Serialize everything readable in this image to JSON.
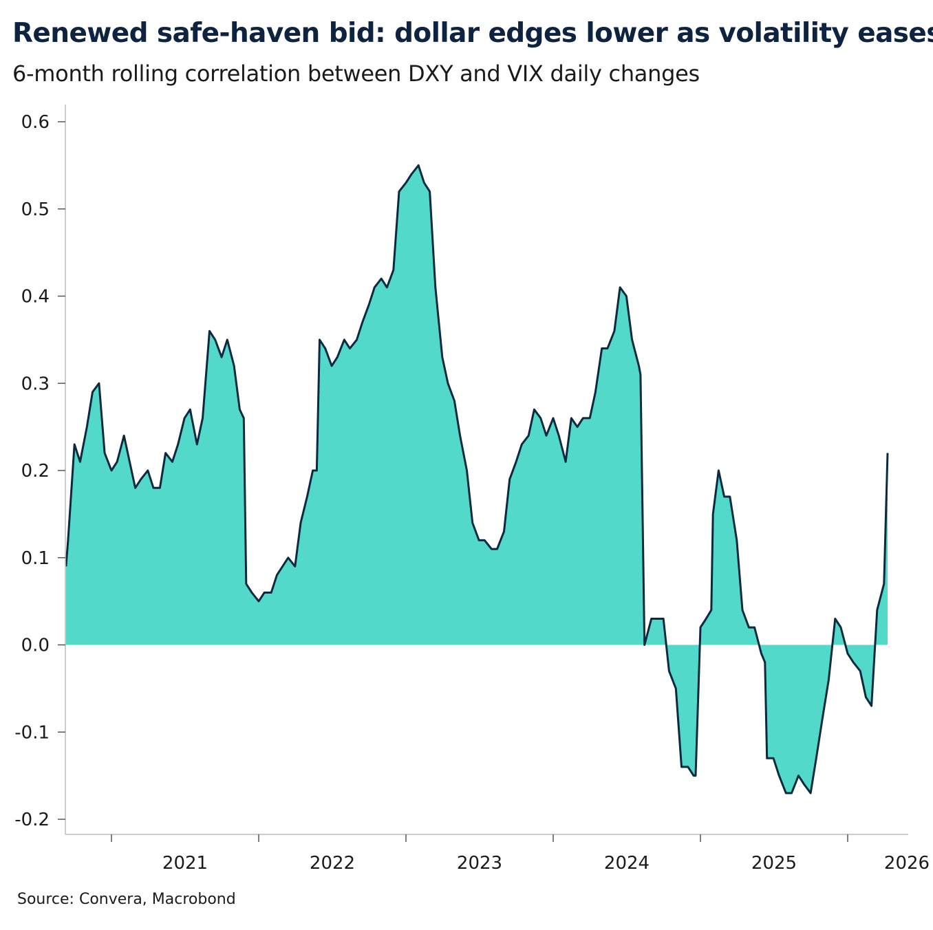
{
  "title": "Renewed safe-haven bid: dollar edges lower as volatility eases",
  "subtitle": "6-month rolling correlation between DXY and VIX daily changes",
  "source": "Source: Convera, Macrobond",
  "colors": {
    "fill": "#52d9c9",
    "line": "#0b2a40",
    "axis": "#bbbbbb"
  },
  "chart_data": {
    "type": "area",
    "title": "Renewed safe-haven bid: dollar edges lower as volatility eases",
    "subtitle": "6-month rolling correlation between DXY and VIX daily changes",
    "xlabel": "",
    "ylabel": "",
    "ylim": [
      -0.2,
      0.6
    ],
    "yticks": [
      "-0.2",
      "-0.1",
      "0.0",
      "0.1",
      "0.2",
      "0.3",
      "0.4",
      "0.5",
      "0.6"
    ],
    "xticks": [
      "2021",
      "2022",
      "2023",
      "2024",
      "2025",
      "2026"
    ],
    "grid": false,
    "x": [
      "2020-09-10",
      "2020-09-15",
      "2020-10-01",
      "2020-10-15",
      "2020-11-01",
      "2020-11-15",
      "2020-12-01",
      "2020-12-15",
      "2021-01-01",
      "2021-01-15",
      "2021-02-01",
      "2021-02-15",
      "2021-03-01",
      "2021-03-15",
      "2021-04-01",
      "2021-04-15",
      "2021-05-01",
      "2021-05-15",
      "2021-06-01",
      "2021-06-15",
      "2021-07-01",
      "2021-07-15",
      "2021-08-01",
      "2021-08-15",
      "2021-09-01",
      "2021-09-15",
      "2021-10-01",
      "2021-10-15",
      "2021-11-01",
      "2021-11-15",
      "2021-11-25",
      "2021-12-01",
      "2021-12-15",
      "2022-01-01",
      "2022-01-15",
      "2022-02-01",
      "2022-02-15",
      "2022-03-01",
      "2022-03-15",
      "2022-04-01",
      "2022-04-15",
      "2022-05-01",
      "2022-05-15",
      "2022-05-25",
      "2022-06-01",
      "2022-06-15",
      "2022-07-01",
      "2022-07-15",
      "2022-08-01",
      "2022-08-15",
      "2022-09-01",
      "2022-09-15",
      "2022-10-01",
      "2022-10-15",
      "2022-11-01",
      "2022-11-15",
      "2022-12-01",
      "2022-12-15",
      "2023-01-01",
      "2023-01-15",
      "2023-02-01",
      "2023-02-15",
      "2023-03-01",
      "2023-03-15",
      "2023-04-01",
      "2023-04-15",
      "2023-05-01",
      "2023-05-15",
      "2023-06-01",
      "2023-06-15",
      "2023-07-01",
      "2023-07-15",
      "2023-08-01",
      "2023-08-15",
      "2023-09-01",
      "2023-09-15",
      "2023-10-01",
      "2023-10-15",
      "2023-11-01",
      "2023-11-15",
      "2023-12-01",
      "2023-12-15",
      "2024-01-01",
      "2024-01-15",
      "2024-02-01",
      "2024-02-15",
      "2024-03-01",
      "2024-03-15",
      "2024-04-01",
      "2024-04-15",
      "2024-05-01",
      "2024-05-15",
      "2024-06-01",
      "2024-06-15",
      "2024-07-01",
      "2024-07-15",
      "2024-08-01",
      "2024-08-05",
      "2024-08-15",
      "2024-09-01",
      "2024-09-15",
      "2024-10-01",
      "2024-10-15",
      "2024-11-01",
      "2024-11-15",
      "2024-12-01",
      "2024-12-15",
      "2024-12-20",
      "2025-01-01",
      "2025-01-15",
      "2025-01-28",
      "2025-02-01",
      "2025-02-15",
      "2025-03-01",
      "2025-03-15",
      "2025-04-01",
      "2025-04-15",
      "2025-05-01",
      "2025-05-15",
      "2025-06-01",
      "2025-06-10",
      "2025-06-15",
      "2025-07-01",
      "2025-07-15",
      "2025-08-01",
      "2025-08-15",
      "2025-09-01",
      "2025-09-15",
      "2025-10-01",
      "2025-10-15",
      "2025-11-01",
      "2025-11-15",
      "2025-12-01",
      "2025-12-15",
      "2026-01-01",
      "2026-01-15",
      "2026-02-01",
      "2026-02-15",
      "2026-03-01",
      "2026-03-15",
      "2026-04-01",
      "2026-04-10"
    ],
    "values": [
      0.09,
      0.12,
      0.23,
      0.21,
      0.25,
      0.29,
      0.3,
      0.22,
      0.2,
      0.21,
      0.24,
      0.21,
      0.18,
      0.19,
      0.2,
      0.18,
      0.18,
      0.22,
      0.21,
      0.23,
      0.26,
      0.27,
      0.23,
      0.26,
      0.36,
      0.35,
      0.33,
      0.35,
      0.32,
      0.27,
      0.26,
      0.07,
      0.06,
      0.05,
      0.06,
      0.06,
      0.08,
      0.09,
      0.1,
      0.09,
      0.14,
      0.17,
      0.2,
      0.2,
      0.35,
      0.34,
      0.32,
      0.33,
      0.35,
      0.34,
      0.35,
      0.37,
      0.39,
      0.41,
      0.42,
      0.41,
      0.43,
      0.52,
      0.53,
      0.54,
      0.55,
      0.53,
      0.52,
      0.41,
      0.33,
      0.3,
      0.28,
      0.24,
      0.2,
      0.14,
      0.12,
      0.12,
      0.11,
      0.11,
      0.13,
      0.19,
      0.21,
      0.23,
      0.24,
      0.27,
      0.26,
      0.24,
      0.26,
      0.24,
      0.21,
      0.26,
      0.25,
      0.26,
      0.26,
      0.29,
      0.34,
      0.34,
      0.36,
      0.41,
      0.4,
      0.35,
      0.32,
      0.31,
      0.0,
      0.03,
      0.03,
      0.03,
      -0.03,
      -0.05,
      -0.14,
      -0.14,
      -0.15,
      -0.15,
      0.02,
      0.03,
      0.04,
      0.15,
      0.2,
      0.17,
      0.17,
      0.12,
      0.04,
      0.02,
      0.02,
      -0.01,
      -0.02,
      -0.13,
      -0.13,
      -0.15,
      -0.17,
      -0.17,
      -0.15,
      -0.16,
      -0.17,
      -0.13,
      -0.08,
      -0.04,
      0.03,
      0.02,
      -0.01,
      -0.02,
      -0.03,
      -0.06,
      -0.07,
      0.04,
      0.07,
      0.22
    ]
  }
}
